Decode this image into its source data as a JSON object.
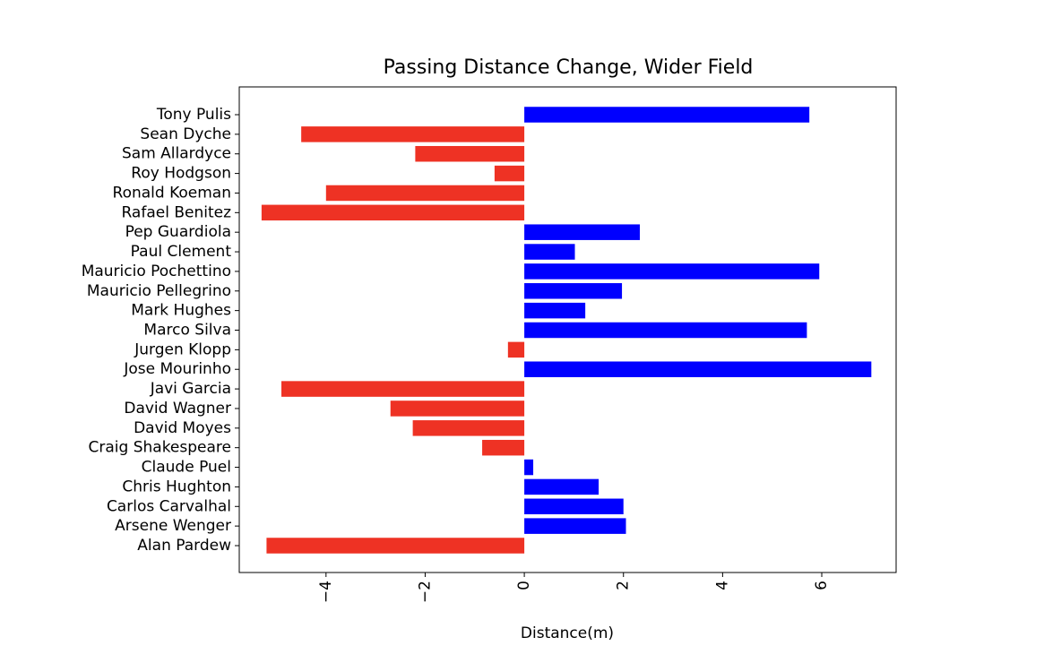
{
  "chart_data": {
    "type": "bar",
    "orientation": "horizontal",
    "title": "Passing Distance Change, Wider Field",
    "xlabel": "Distance(m)",
    "ylabel": "",
    "xlim": [
      -5.75,
      7.5
    ],
    "xticks": [
      -4,
      -2,
      0,
      2,
      4,
      6
    ],
    "xtick_labels": [
      "−4",
      "−2",
      "0",
      "2",
      "4",
      "6"
    ],
    "xtick_rotation": "vertical",
    "grid": false,
    "categories": [
      "Alan Pardew",
      "Arsene Wenger",
      "Carlos Carvalhal",
      "Chris Hughton",
      "Claude Puel",
      "Craig Shakespeare",
      "David Moyes",
      "David Wagner",
      "Javi Garcia",
      "Jose Mourinho",
      "Jurgen Klopp",
      "Marco Silva",
      "Mark Hughes",
      "Mauricio Pellegrino",
      "Mauricio Pochettino",
      "Paul Clement",
      "Pep Guardiola",
      "Rafael Benitez",
      "Ronald Koeman",
      "Roy Hodgson",
      "Sam Allardyce",
      "Sean Dyche",
      "Tony Pulis"
    ],
    "values": [
      -5.2,
      2.05,
      2.0,
      1.5,
      0.18,
      -0.85,
      -2.25,
      -2.7,
      -4.9,
      7.0,
      -0.33,
      5.7,
      1.23,
      1.97,
      5.95,
      1.02,
      2.33,
      -5.3,
      -4.0,
      -0.6,
      -2.2,
      -4.5,
      5.75
    ],
    "colors": {
      "positive": "#0000ff",
      "negative": "#ee3224"
    }
  }
}
